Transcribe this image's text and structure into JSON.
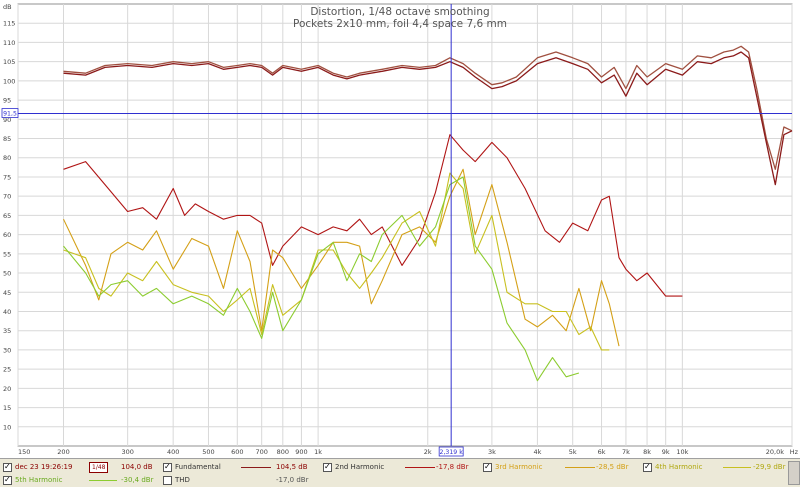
{
  "chart_data": {
    "type": "line",
    "title": "Distortion, 1/48 octave smoothing",
    "subtitle": "Pockets 2x10 mm, foil 4,4 space 7,6 mm",
    "xscale": "log",
    "xlim": [
      150,
      20000
    ],
    "ylim": [
      5,
      120
    ],
    "y_unit_label": "dB",
    "x_unit_label": "Hz",
    "x_ticks": [
      {
        "v": 150,
        "label": "150"
      },
      {
        "v": 200,
        "label": "200"
      },
      {
        "v": 300,
        "label": "300"
      },
      {
        "v": 400,
        "label": "400"
      },
      {
        "v": 500,
        "label": "500"
      },
      {
        "v": 600,
        "label": "600"
      },
      {
        "v": 700,
        "label": "700"
      },
      {
        "v": 800,
        "label": "800"
      },
      {
        "v": 900,
        "label": "900"
      },
      {
        "v": 1000,
        "label": "1k"
      },
      {
        "v": 2000,
        "label": "2k"
      },
      {
        "v": 3000,
        "label": "3k"
      },
      {
        "v": 4000,
        "label": "4k"
      },
      {
        "v": 5000,
        "label": "5k"
      },
      {
        "v": 6000,
        "label": "6k"
      },
      {
        "v": 7000,
        "label": "7k"
      },
      {
        "v": 8000,
        "label": "8k"
      },
      {
        "v": 9000,
        "label": "9k"
      },
      {
        "v": 10000,
        "label": "10k"
      },
      {
        "v": 20000,
        "label": "20,0k"
      }
    ],
    "y_ticks": [
      10,
      15,
      20,
      25,
      30,
      35,
      40,
      45,
      50,
      55,
      60,
      65,
      70,
      75,
      80,
      85,
      90,
      95,
      100,
      105,
      110,
      115
    ],
    "cursor": {
      "x": 2319,
      "x_label": "2,319 k",
      "y": 91.5,
      "y_label": "91,5"
    },
    "grid": true,
    "series": [
      {
        "name": "dec 23 19:26:19",
        "color": "#a05040",
        "x": [
          200,
          230,
          260,
          300,
          350,
          400,
          450,
          500,
          550,
          600,
          650,
          700,
          750,
          800,
          900,
          1000,
          1100,
          1200,
          1300,
          1500,
          1700,
          1900,
          2100,
          2300,
          2500,
          2700,
          3000,
          3200,
          3500,
          4000,
          4500,
          5000,
          5500,
          6000,
          6500,
          7000,
          7500,
          8000,
          9000,
          10000,
          11000,
          12000,
          13000,
          13800,
          14500,
          15200,
          16000,
          17000,
          18000,
          19000,
          20000
        ],
        "y": [
          102.5,
          102,
          104,
          104.5,
          104,
          105,
          104.5,
          105,
          103.5,
          104,
          104.5,
          104,
          102,
          104,
          103,
          104,
          102,
          101,
          102,
          103,
          104,
          103.5,
          104,
          106,
          104.5,
          102,
          99,
          99.5,
          101,
          106,
          107.5,
          106,
          104.5,
          101,
          103.5,
          98,
          104,
          101,
          104.5,
          103,
          106.5,
          106,
          107.5,
          108,
          109,
          107.5,
          98,
          85,
          77,
          88,
          87
        ]
      },
      {
        "name": "Fundamental",
        "color": "#8b1a1a",
        "x": [
          200,
          230,
          260,
          300,
          350,
          400,
          450,
          500,
          550,
          600,
          650,
          700,
          750,
          800,
          900,
          1000,
          1100,
          1200,
          1300,
          1500,
          1700,
          1900,
          2100,
          2300,
          2500,
          2700,
          3000,
          3200,
          3500,
          4000,
          4500,
          5000,
          5500,
          6000,
          6500,
          7000,
          7500,
          8000,
          9000,
          10000,
          11000,
          12000,
          13000,
          13800,
          14500,
          15200,
          16000,
          17000,
          18000,
          19000,
          20000
        ],
        "y": [
          102,
          101.5,
          103.5,
          104,
          103.5,
          104.5,
          104,
          104.5,
          103,
          103.5,
          104,
          103.5,
          101.5,
          103.5,
          102.5,
          103.5,
          101.5,
          100.5,
          101.5,
          102.5,
          103.5,
          103,
          103.5,
          105,
          103.5,
          101,
          98,
          98.5,
          100,
          104.5,
          106,
          104.5,
          103,
          99.5,
          101.5,
          96,
          102,
          99,
          103,
          101.5,
          105,
          104.5,
          106,
          106.5,
          107.5,
          106,
          96,
          84,
          73,
          86,
          87
        ]
      },
      {
        "name": "2nd Harmonic",
        "color": "#b01515",
        "x": [
          200,
          230,
          260,
          300,
          330,
          360,
          400,
          430,
          460,
          500,
          550,
          600,
          650,
          700,
          750,
          800,
          900,
          1000,
          1100,
          1200,
          1300,
          1400,
          1500,
          1700,
          1900,
          2100,
          2300,
          2500,
          2700,
          3000,
          3300,
          3700,
          4200,
          4600,
          5000,
          5500,
          6000,
          6300,
          6700,
          7000,
          7500,
          8000,
          9000,
          10000
        ],
        "y": [
          77,
          79,
          73,
          66,
          67,
          64,
          72,
          65,
          68,
          66,
          64,
          65,
          65,
          63,
          52,
          57,
          62,
          60,
          62,
          61,
          64,
          60,
          62,
          52,
          59,
          71,
          86,
          82,
          79,
          84,
          80,
          72,
          61,
          58,
          63,
          61,
          69,
          70,
          54,
          51,
          48,
          50,
          44,
          44
        ]
      },
      {
        "name": "3rd Harmonic",
        "color": "#d4a017",
        "x": [
          200,
          230,
          250,
          270,
          300,
          330,
          360,
          400,
          450,
          500,
          550,
          600,
          650,
          700,
          750,
          800,
          900,
          1000,
          1100,
          1200,
          1300,
          1400,
          1500,
          1700,
          1900,
          2100,
          2300,
          2500,
          2700,
          3000,
          3300,
          3700,
          4000,
          4400,
          4800,
          5200,
          5600,
          6000,
          6300,
          6700
        ],
        "y": [
          64,
          52,
          43,
          55,
          58,
          56,
          61,
          51,
          59,
          57,
          46,
          61,
          53,
          35,
          56,
          54,
          46,
          52,
          58,
          58,
          57,
          42,
          48,
          60,
          62,
          58,
          70,
          77,
          60,
          73,
          58,
          38,
          36,
          39,
          35,
          46,
          35,
          48,
          42,
          31
        ]
      },
      {
        "name": "4th Harmonic",
        "color": "#c8c020",
        "x": [
          200,
          230,
          250,
          270,
          300,
          330,
          360,
          400,
          450,
          500,
          550,
          600,
          650,
          700,
          750,
          800,
          900,
          1000,
          1100,
          1200,
          1300,
          1400,
          1500,
          1700,
          1900,
          2100,
          2300,
          2500,
          2700,
          3000,
          3300,
          3700,
          4000,
          4400,
          4800,
          5200,
          5600,
          6000,
          6300
        ],
        "y": [
          56,
          54,
          46,
          44,
          50,
          48,
          53,
          47,
          45,
          44,
          40,
          43,
          46,
          34,
          47,
          39,
          43,
          56,
          56,
          50,
          46,
          50,
          54,
          63,
          66,
          57,
          76,
          72,
          55,
          65,
          45,
          42,
          42,
          40,
          40,
          34,
          36,
          30,
          30
        ]
      },
      {
        "name": "5th Harmonic",
        "color": "#8ccc30",
        "x": [
          200,
          230,
          250,
          270,
          300,
          330,
          360,
          400,
          450,
          500,
          550,
          600,
          650,
          700,
          750,
          800,
          900,
          1000,
          1100,
          1200,
          1300,
          1400,
          1500,
          1700,
          1900,
          2100,
          2300,
          2500,
          2700,
          3000,
          3300,
          3700,
          4000,
          4400,
          4800,
          5200
        ],
        "y": [
          57,
          50,
          44,
          47,
          48,
          44,
          46,
          42,
          44,
          42,
          39,
          46,
          40,
          33,
          45,
          35,
          43,
          55,
          58,
          48,
          55,
          53,
          60,
          65,
          57,
          62,
          73,
          75,
          57,
          51,
          37,
          30,
          22,
          28,
          23,
          24
        ]
      }
    ]
  },
  "legend": {
    "row1": [
      {
        "label": "dec 23 19:26:19",
        "value": "104,0 dB",
        "badge": "1/48",
        "color": "#a05040",
        "checked": true
      },
      {
        "label": "Fundamental",
        "value": "104,5 dB",
        "color": "#8b1a1a",
        "checked": true
      },
      {
        "label": "2nd Harmonic",
        "value": "-17,8 dBr",
        "color": "#b01515",
        "checked": true
      },
      {
        "label": "3rd Harmonic",
        "value": "-28,5 dBr",
        "color": "#d4a017",
        "checked": true
      },
      {
        "label": "4th Harmonic",
        "value": "-29,9 dBr",
        "color": "#c8c020",
        "checked": true
      }
    ],
    "row2": [
      {
        "label": "5th Harmonic",
        "value": "-30,4 dBr",
        "color": "#8ccc30",
        "checked": true
      },
      {
        "label": "THD",
        "value": "-17,0 dBr",
        "color": "#999999",
        "checked": false
      }
    ]
  }
}
